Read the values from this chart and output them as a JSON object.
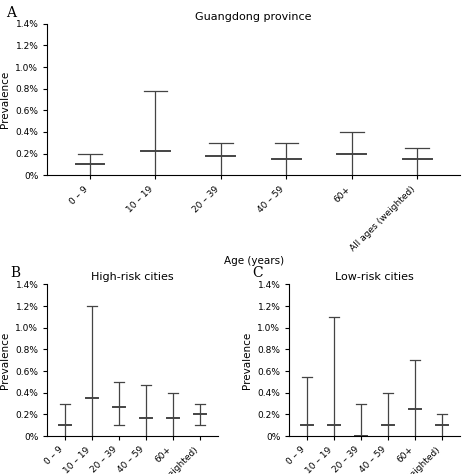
{
  "panel_A": {
    "title": "Guangdong province",
    "label": "A",
    "categories": [
      "0 – 9",
      "10 – 19",
      "20 – 39",
      "40 – 59",
      "60+",
      "All ages (weighted)"
    ],
    "centers": [
      0.001,
      0.0022,
      0.0018,
      0.0015,
      0.002,
      0.0015
    ],
    "lowers": [
      0.0,
      0.0,
      0.0,
      0.0,
      0.0,
      0.0
    ],
    "uppers": [
      0.002,
      0.0078,
      0.003,
      0.003,
      0.004,
      0.0025
    ]
  },
  "panel_B": {
    "title": "High-risk cities",
    "label": "B",
    "categories": [
      "0 – 9",
      "10 – 19",
      "20 – 39",
      "40 – 59",
      "60+",
      "All ages (weighted)"
    ],
    "centers": [
      0.001,
      0.0035,
      0.0027,
      0.0017,
      0.0017,
      0.002
    ],
    "lowers": [
      0.0,
      0.0,
      0.001,
      0.0,
      0.0,
      0.001
    ],
    "uppers": [
      0.003,
      0.012,
      0.005,
      0.0047,
      0.004,
      0.003
    ]
  },
  "panel_C": {
    "title": "Low-risk cities",
    "label": "C",
    "categories": [
      "0 – 9",
      "10 – 19",
      "20 – 39",
      "40 – 59",
      "60+",
      "All ages (weighted)"
    ],
    "centers": [
      0.001,
      0.001,
      0.0,
      0.001,
      0.0025,
      0.001
    ],
    "lowers": [
      0.0,
      0.0,
      0.0,
      0.0,
      0.0,
      0.0
    ],
    "uppers": [
      0.0055,
      0.011,
      0.003,
      0.004,
      0.007,
      0.002
    ]
  },
  "ylim": [
    0,
    0.014
  ],
  "yticks": [
    0.0,
    0.002,
    0.004,
    0.006,
    0.008,
    0.01,
    0.012,
    0.014
  ],
  "yticklabels": [
    "0%",
    "0.2%",
    "0.4%",
    "0.6%",
    "0.8%",
    "1.0%",
    "1.2%",
    "1.4%"
  ],
  "ylabel": "Prevalence",
  "xlabel": "Age (years)",
  "marker_color": "#444444",
  "line_color": "#444444",
  "background": "#ffffff",
  "title_fontsize": 8,
  "tick_fontsize": 6.5,
  "axis_label_fontsize": 7.5,
  "panel_label_fontsize": 10
}
